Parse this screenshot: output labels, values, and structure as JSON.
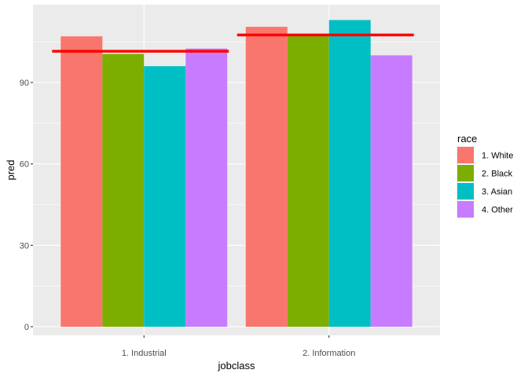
{
  "chart_data": {
    "type": "bar",
    "categories": [
      "1. Industrial",
      "2. Information"
    ],
    "series": [
      {
        "name": "1. White",
        "color": "#F8766D",
        "values": [
          107,
          110.5
        ]
      },
      {
        "name": "2. Black",
        "color": "#7CAE00",
        "values": [
          100.5,
          107.5
        ]
      },
      {
        "name": "3. Asian",
        "color": "#00BFC4",
        "values": [
          96,
          113
        ]
      },
      {
        "name": "4. Other",
        "color": "#C77CFF",
        "values": [
          102.5,
          100
        ]
      }
    ],
    "reference_lines": [
      {
        "category": "1. Industrial",
        "value": 101.5,
        "color": "#FF0000"
      },
      {
        "category": "2. Information",
        "value": 107.5,
        "color": "#FF0000"
      }
    ],
    "xlabel": "jobclass",
    "ylabel": "pred",
    "yticks": [
      0,
      30,
      60,
      90
    ],
    "ylim": [
      -5.6,
      118.6
    ],
    "legend": {
      "title": "race",
      "position": "right"
    },
    "grid": true,
    "panel_background": "#EBEBEB",
    "grid_color": "#FFFFFF"
  }
}
